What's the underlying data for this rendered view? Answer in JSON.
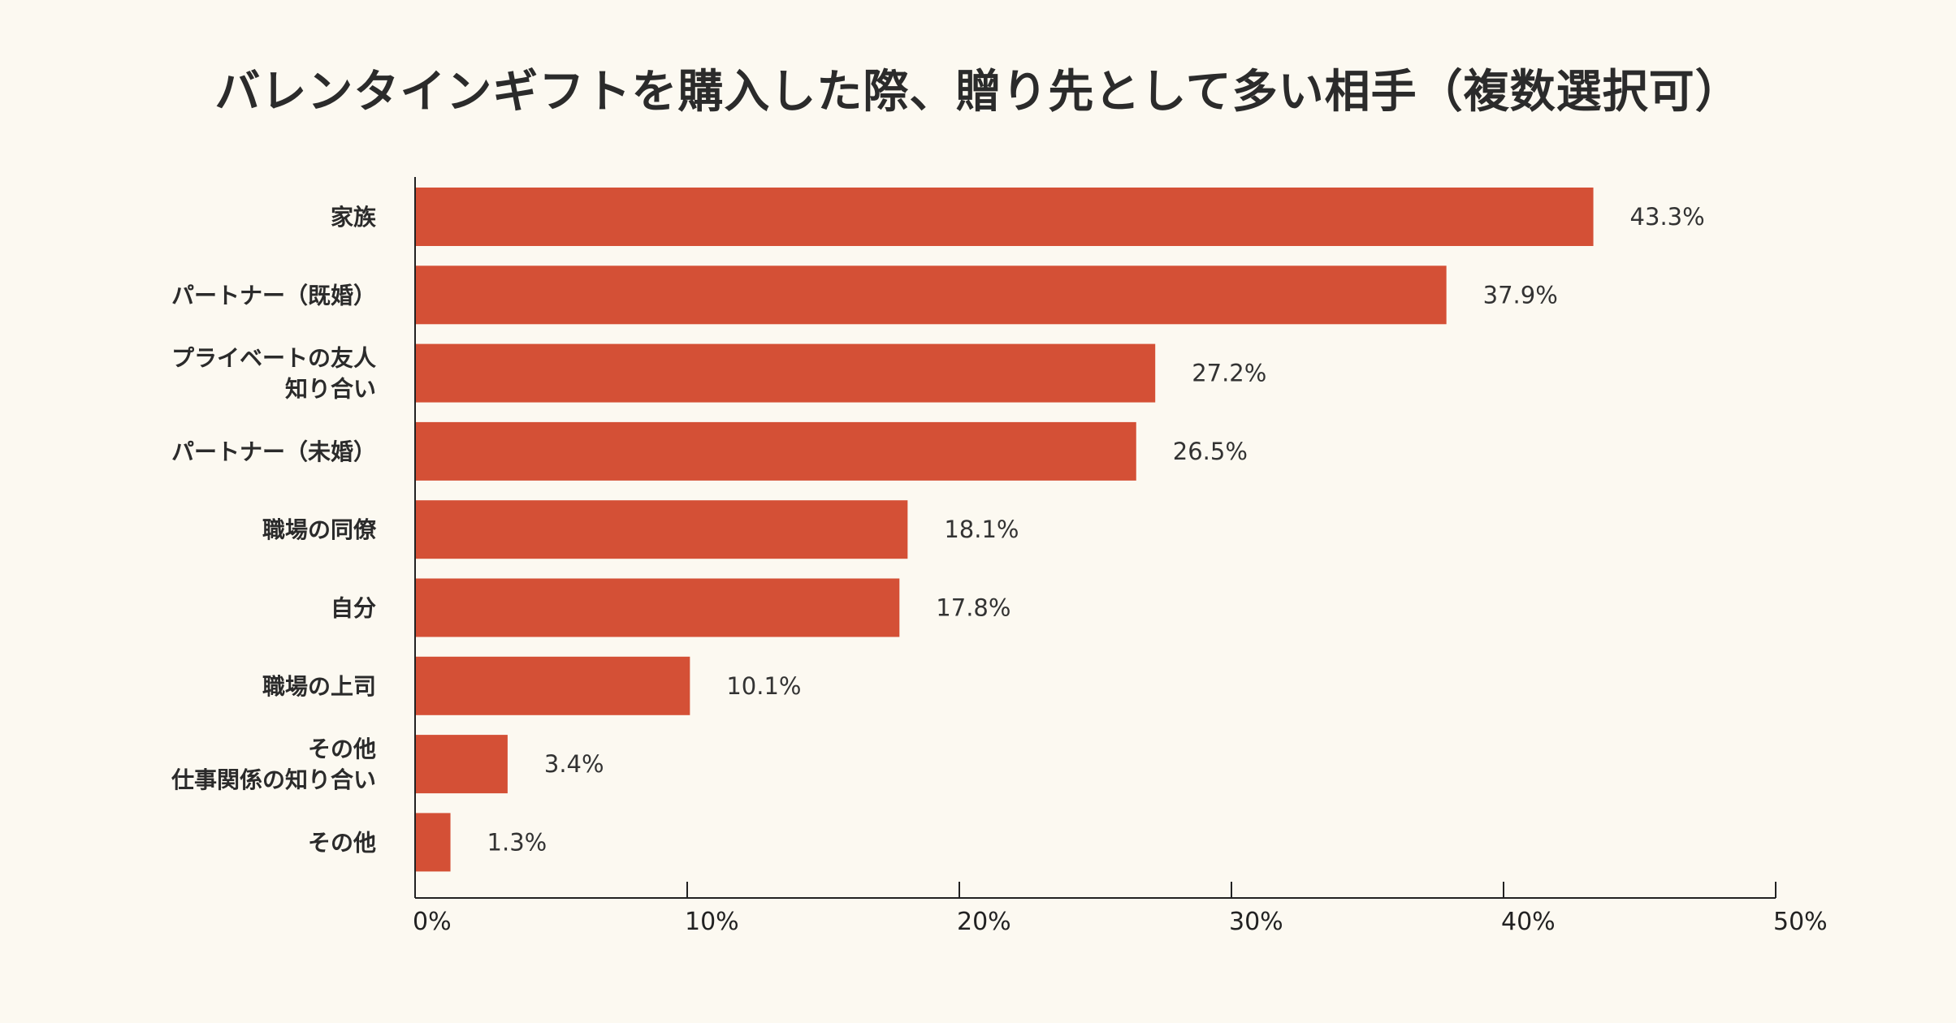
{
  "title": "バレンタインギフトを購入した際、贈り先として多い相手（複数選択可）",
  "colors": {
    "bar": "#d45036",
    "background": "#fcf9f1",
    "axis": "#222222"
  },
  "chart_data": {
    "type": "bar",
    "orientation": "horizontal",
    "title": "バレンタインギフトを購入した際、贈り先として多い相手（複数選択可）",
    "categories": [
      [
        "家族"
      ],
      [
        "パートナー（既婚）"
      ],
      [
        "プライベートの友人",
        "知り合い"
      ],
      [
        "パートナー（未婚）"
      ],
      [
        "職場の同僚"
      ],
      [
        "自分"
      ],
      [
        "職場の上司"
      ],
      [
        "その他",
        "仕事関係の知り合い"
      ],
      [
        "その他"
      ]
    ],
    "values": [
      43.3,
      37.9,
      27.2,
      26.5,
      18.1,
      17.8,
      10.1,
      3.4,
      1.3
    ],
    "value_labels": [
      "43.3%",
      "37.9%",
      "27.2%",
      "26.5%",
      "18.1%",
      "17.8%",
      "10.1%",
      "3.4%",
      "1.3%"
    ],
    "xlim": [
      0,
      50
    ],
    "xticks": [
      0,
      10,
      20,
      30,
      40,
      50
    ],
    "xtick_labels": [
      "0%",
      "10%",
      "20%",
      "30%",
      "40%",
      "50%"
    ],
    "grid": false,
    "legend": "none"
  }
}
